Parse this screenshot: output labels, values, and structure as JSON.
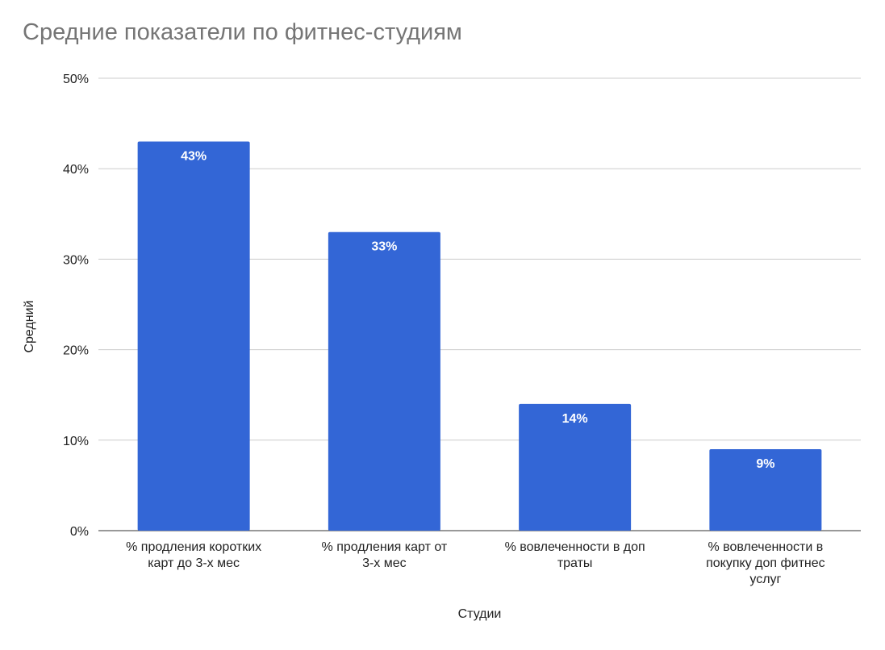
{
  "chart_data": {
    "type": "bar",
    "title": "Средние показатели по фитнес-студиям",
    "xlabel": "Студии",
    "ylabel": "Средний",
    "categories": [
      [
        "% продления коротких",
        "карт до 3-х мес"
      ],
      [
        "% продления карт от",
        "3-х мес"
      ],
      [
        "% вовлеченности в доп",
        "траты"
      ],
      [
        "% вовлеченности в",
        "покупку доп фитнес",
        "услуг"
      ]
    ],
    "values": [
      0.43,
      0.33,
      0.14,
      0.09
    ],
    "data_labels": [
      "43%",
      "33%",
      "14%",
      "9%"
    ],
    "yticks": [
      "0%",
      "10%",
      "20%",
      "30%",
      "40%",
      "50%"
    ],
    "ylim": [
      0,
      0.5
    ],
    "grid": true,
    "legend": "none",
    "bar_color": "#3366d6"
  }
}
